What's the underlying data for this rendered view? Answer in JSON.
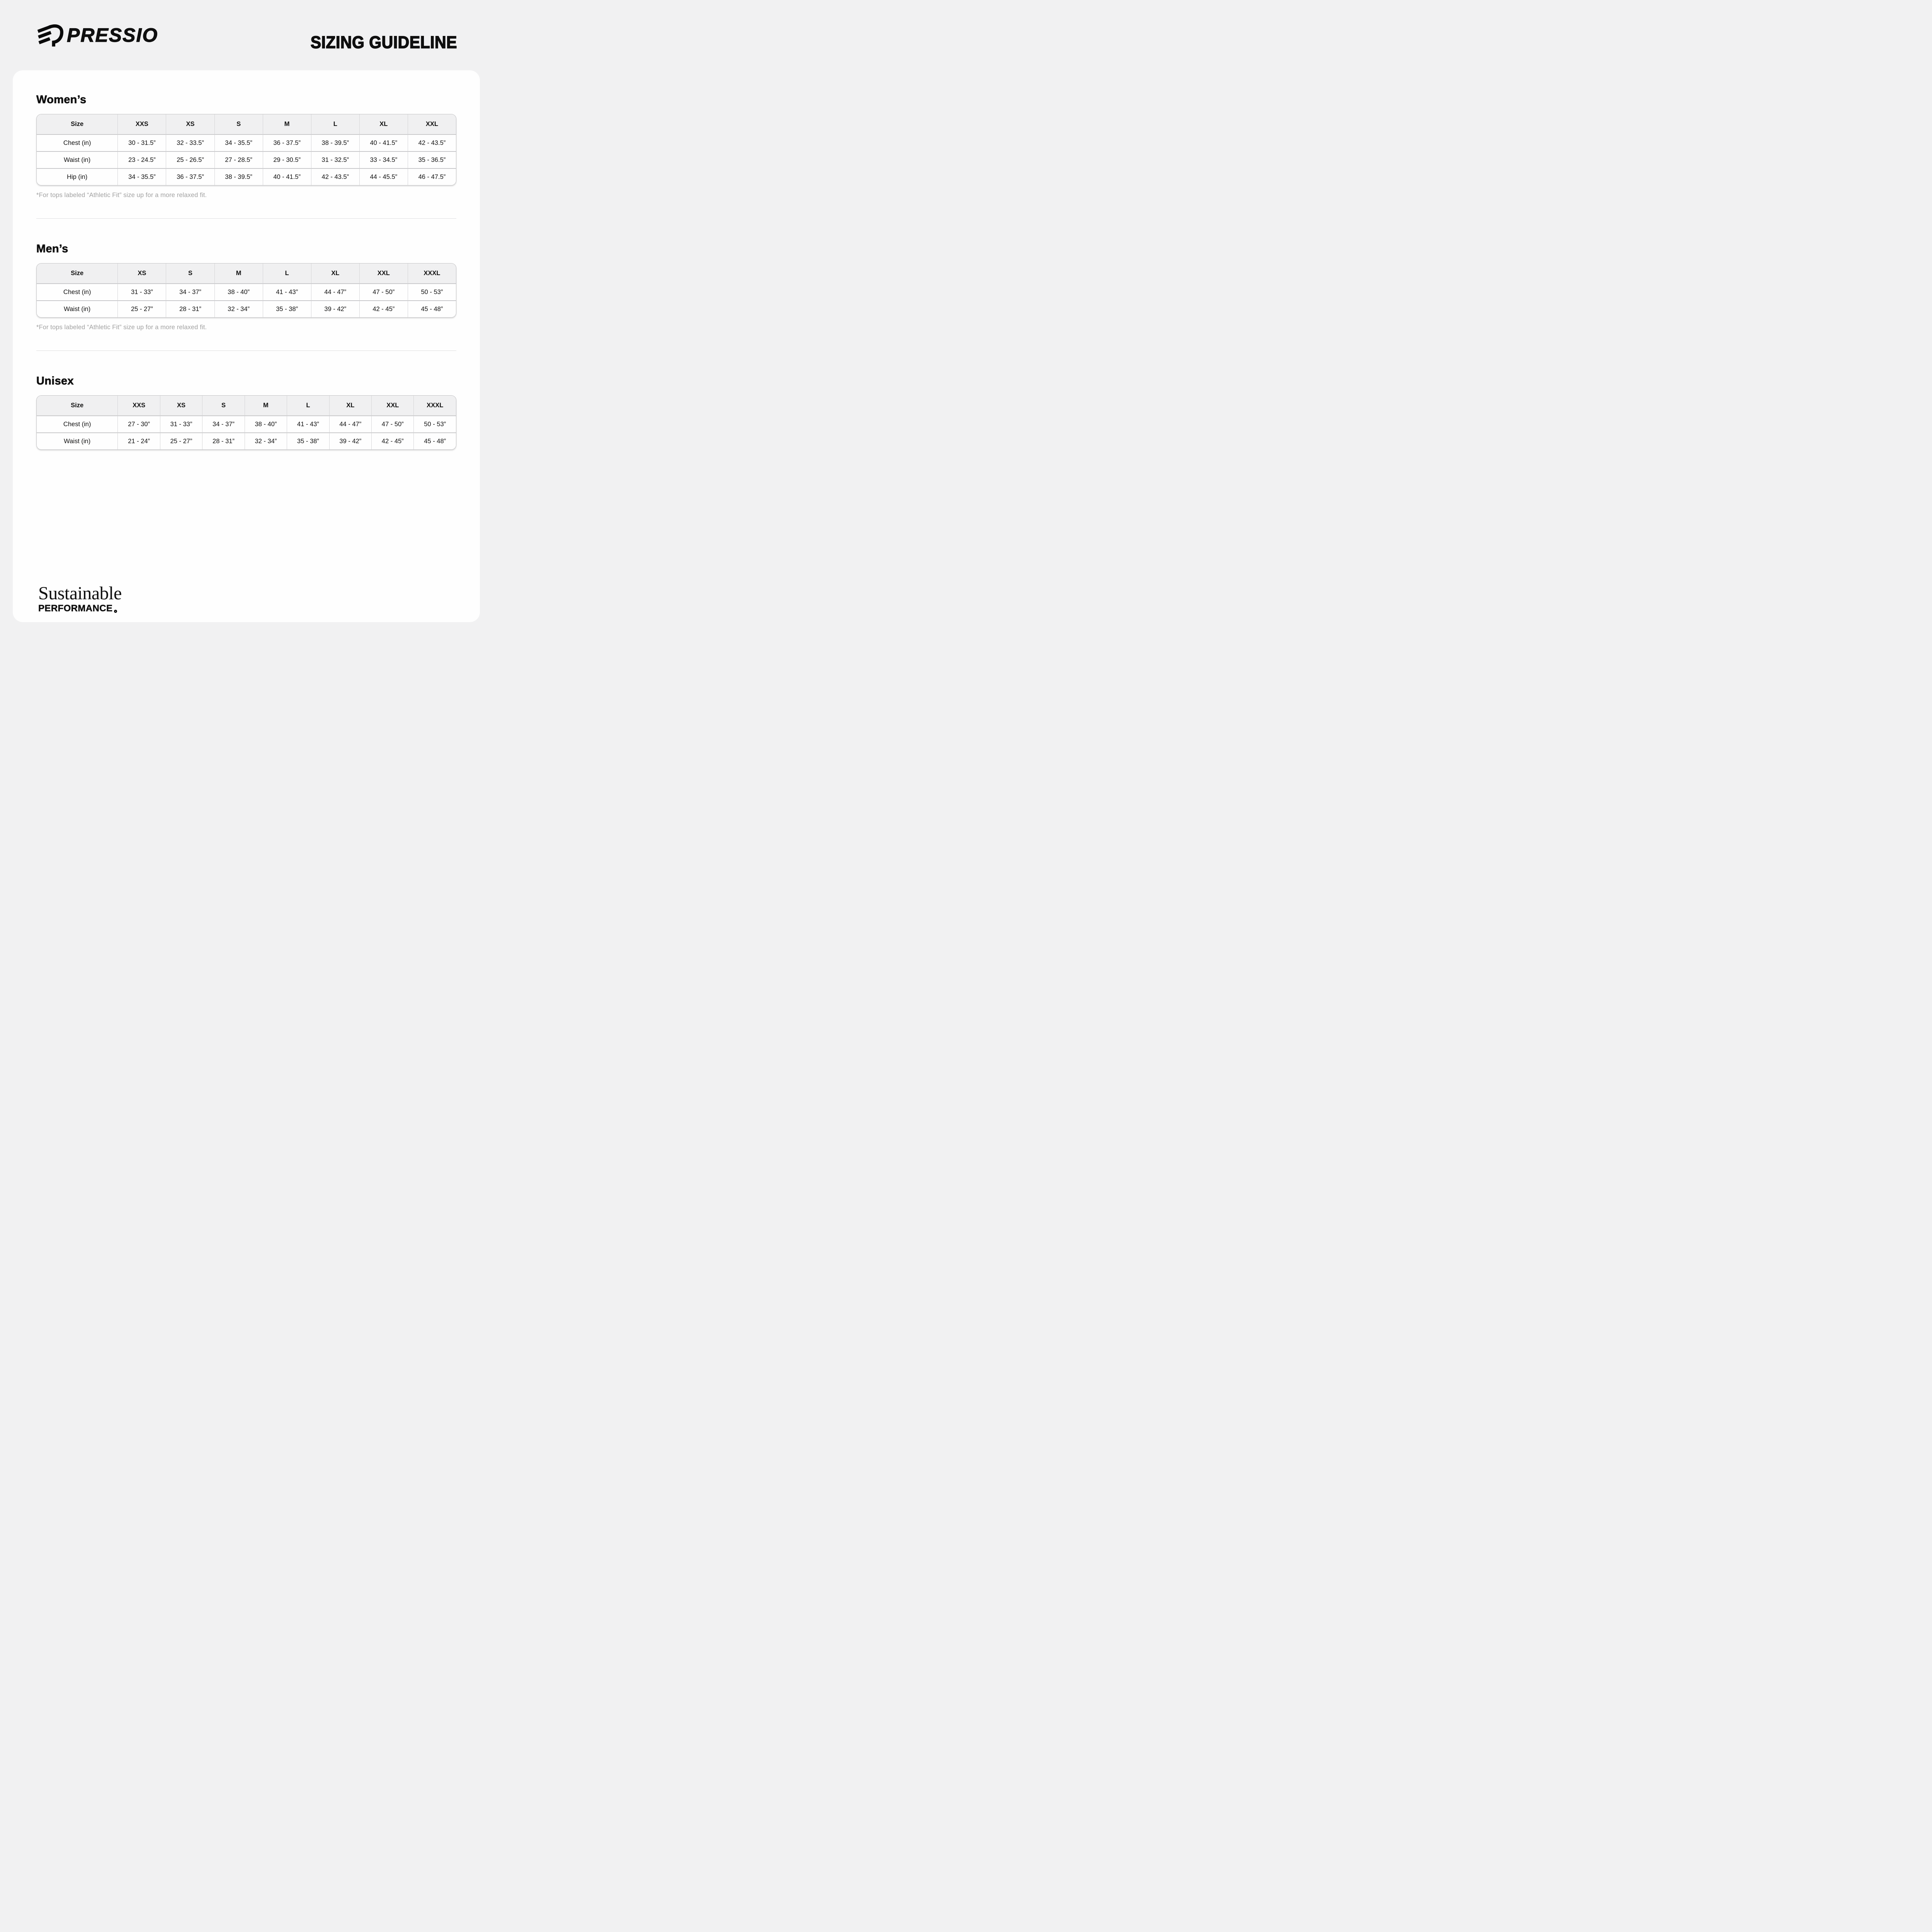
{
  "header": {
    "brand": "PRESSIO",
    "logo_icon": "pressio-wing-icon",
    "title": "SIZING GUIDELINE"
  },
  "colors": {
    "page_background": "#f1f1f2",
    "card_background": "#fefefe",
    "table_header_background": "#f0f0f1",
    "table_border": "#c9c9cb",
    "footnote_text": "#a2a2a2",
    "text": "#101010"
  },
  "sections": [
    {
      "heading": "Women’s",
      "columns": [
        "Size",
        "XXS",
        "XS",
        "S",
        "M",
        "L",
        "XL",
        "XXL"
      ],
      "rows": [
        {
          "label": "Chest (in)",
          "values": [
            "30 - 31.5”",
            "32 - 33.5”",
            "34 - 35.5”",
            "36 - 37.5”",
            "38 - 39.5”",
            "40 - 41.5”",
            "42 - 43.5”"
          ]
        },
        {
          "label": "Waist (in)",
          "values": [
            "23 - 24.5”",
            "25 - 26.5”",
            "27 - 28.5”",
            "29 - 30.5”",
            "31 - 32.5”",
            "33 - 34.5”",
            "35 - 36.5”"
          ]
        },
        {
          "label": "Hip (in)",
          "values": [
            "34 - 35.5”",
            "36 - 37.5”",
            "38 - 39.5”",
            "40 - 41.5”",
            "42 - 43.5”",
            "44 - 45.5”",
            "46 - 47.5”"
          ]
        }
      ],
      "footnote": "*For tops labeled “Athletic Fit” size up for a more relaxed fit."
    },
    {
      "heading": "Men’s",
      "columns": [
        "Size",
        "XS",
        "S",
        "M",
        "L",
        "XL",
        "XXL",
        "XXXL"
      ],
      "rows": [
        {
          "label": "Chest (in)",
          "values": [
            "31 - 33”",
            "34 - 37”",
            "38 - 40”",
            "41 - 43”",
            "44 - 47”",
            "47 - 50”",
            "50 - 53”"
          ]
        },
        {
          "label": "Waist (in)",
          "values": [
            "25 - 27”",
            "28 - 31”",
            "32 - 34”",
            "35 - 38”",
            "39 - 42”",
            "42 - 45”",
            "45 - 48”"
          ]
        }
      ],
      "footnote": "*For tops labeled “Athletic Fit” size up for a more relaxed fit."
    },
    {
      "heading": "Unisex",
      "columns": [
        "Size",
        "XXS",
        "XS",
        "S",
        "M",
        "L",
        "XL",
        "XXL",
        "XXXL"
      ],
      "rows": [
        {
          "label": "Chest (in)",
          "values": [
            "27 - 30”",
            "31 - 33”",
            "34 - 37”",
            "38 - 40”",
            "41 - 43”",
            "44 - 47”",
            "47 - 50”",
            "50 - 53”"
          ]
        },
        {
          "label": "Waist (in)",
          "values": [
            "21 - 24”",
            "25 - 27”",
            "28 - 31”",
            "32 - 34”",
            "35 - 38”",
            "39 - 42”",
            "42 - 45”",
            "45 - 48”"
          ]
        }
      ],
      "footnote": null
    }
  ],
  "footer": {
    "line1": "Sustainable",
    "line2": "PERFORMANCE",
    "mark_icon": "small-circle"
  }
}
